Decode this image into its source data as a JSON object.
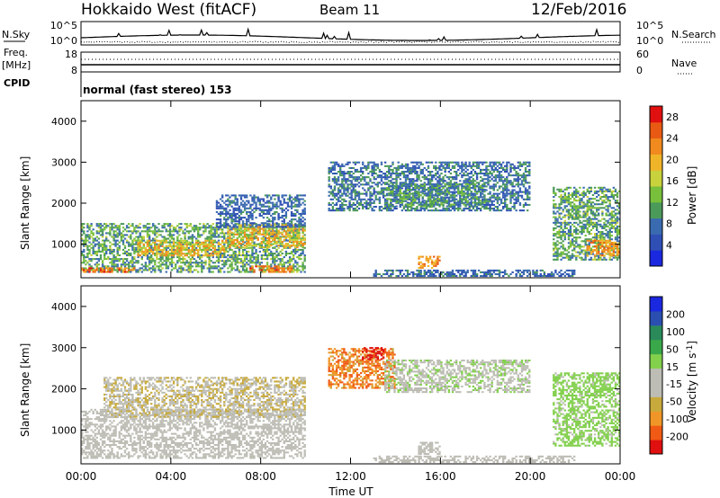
{
  "header": {
    "station": "Hokkaido West (fitACF)",
    "beam": "Beam 11",
    "date": "12/Feb/2016"
  },
  "params": {
    "nsky_label": "N.Sky",
    "nsearch_label": "N.Search",
    "noise_ticks": [
      "10^5",
      "10^0"
    ],
    "freq_label": "Freq.",
    "freq_unit": "[MHz]",
    "freq_ticks": [
      "18",
      "8"
    ],
    "nave_label": "Nave",
    "nave_ticks": [
      "60",
      "0"
    ],
    "cpid_label": "CPID",
    "cpid_value": "normal (fast stereo) 153"
  },
  "colors": {
    "power": [
      "#1a28e0",
      "#2f4fb5",
      "#3a6bb0",
      "#4c9a5a",
      "#78c03c",
      "#c8d23c",
      "#f0b428",
      "#f08a1e",
      "#e85a14",
      "#e01010"
    ],
    "velocity": [
      "#e01010",
      "#f05a14",
      "#f09628",
      "#c8aa3c",
      "#bdbdb5",
      "#bdbdb5",
      "#82d04c",
      "#3aa84a",
      "#2a8a5a",
      "#2a4fb0",
      "#1a28e0"
    ]
  },
  "chart_data": [
    {
      "type": "heatmap",
      "title": "Power",
      "xlabel": "Time UT",
      "ylabel": "Slant Range [km]",
      "x_ticks": [
        "00:00",
        "04:00",
        "08:00",
        "12:00",
        "16:00",
        "20:00",
        "00:00"
      ],
      "x_range_hours": [
        0,
        24
      ],
      "y_ticks": [
        1000,
        2000,
        3000,
        4000
      ],
      "y_range_km": [
        180,
        4500
      ],
      "colorbar_label": "Power [dB]",
      "colorbar_ticks": [
        4,
        8,
        12,
        16,
        20,
        24,
        28
      ],
      "colorbar_range": [
        0,
        30
      ],
      "scatter_regions": [
        {
          "t": [
            0.0,
            10.0
          ],
          "r": [
            300,
            1500
          ],
          "v": [
            6,
            16
          ]
        },
        {
          "t": [
            0.0,
            2.5
          ],
          "r": [
            300,
            450
          ],
          "v": [
            20,
            28
          ]
        },
        {
          "t": [
            2.5,
            6.5
          ],
          "r": [
            700,
            1100
          ],
          "v": [
            14,
            24
          ]
        },
        {
          "t": [
            6.5,
            10.0
          ],
          "r": [
            900,
            1500
          ],
          "v": [
            14,
            24
          ]
        },
        {
          "t": [
            7.5,
            9.5
          ],
          "r": [
            300,
            500
          ],
          "v": [
            20,
            28
          ]
        },
        {
          "t": [
            6.0,
            10.0
          ],
          "r": [
            1400,
            2200
          ],
          "v": [
            4,
            10
          ]
        },
        {
          "t": [
            11.0,
            20.0
          ],
          "r": [
            1800,
            3000
          ],
          "v": [
            4,
            12
          ]
        },
        {
          "t": [
            13.5,
            18.0
          ],
          "r": [
            1900,
            2500
          ],
          "v": [
            6,
            14
          ]
        },
        {
          "t": [
            15.0,
            16.0
          ],
          "r": [
            400,
            700
          ],
          "v": [
            18,
            26
          ]
        },
        {
          "t": [
            13.0,
            22.0
          ],
          "r": [
            200,
            400
          ],
          "v": [
            4,
            10
          ]
        },
        {
          "t": [
            21.0,
            24.0
          ],
          "r": [
            600,
            2400
          ],
          "v": [
            6,
            16
          ]
        },
        {
          "t": [
            22.5,
            24.0
          ],
          "r": [
            700,
            1100
          ],
          "v": [
            18,
            26
          ]
        }
      ]
    },
    {
      "type": "heatmap",
      "title": "Velocity",
      "xlabel": "Time UT",
      "ylabel": "Slant Range [km]",
      "x_ticks": [
        "00:00",
        "04:00",
        "08:00",
        "12:00",
        "16:00",
        "20:00",
        "00:00"
      ],
      "x_range_hours": [
        0,
        24
      ],
      "y_ticks": [
        1000,
        2000,
        3000,
        4000
      ],
      "y_range_km": [
        180,
        4500
      ],
      "colorbar_label": "Velocity [m s^-1]",
      "colorbar_ticks": [
        200,
        100,
        50,
        15,
        -15,
        -50,
        -100,
        -200
      ],
      "scatter_regions": [
        {
          "t": [
            0.0,
            10.0
          ],
          "r": [
            300,
            1500
          ],
          "v": [
            -15,
            15
          ]
        },
        {
          "t": [
            1.0,
            10.0
          ],
          "r": [
            1300,
            2300
          ],
          "v": [
            -100,
            -15
          ]
        },
        {
          "t": [
            11.0,
            14.0
          ],
          "r": [
            2000,
            3000
          ],
          "v": [
            -200,
            -100
          ]
        },
        {
          "t": [
            12.5,
            13.5
          ],
          "r": [
            2700,
            3000
          ],
          "v": [
            -250,
            -200
          ]
        },
        {
          "t": [
            13.5,
            20.0
          ],
          "r": [
            1900,
            2700
          ],
          "v": [
            -50,
            50
          ]
        },
        {
          "t": [
            15.0,
            16.0
          ],
          "r": [
            400,
            700
          ],
          "v": [
            -15,
            15
          ]
        },
        {
          "t": [
            13.0,
            22.0
          ],
          "r": [
            200,
            400
          ],
          "v": [
            -15,
            15
          ]
        },
        {
          "t": [
            21.0,
            24.0
          ],
          "r": [
            600,
            2400
          ],
          "v": [
            15,
            60
          ]
        }
      ]
    }
  ]
}
